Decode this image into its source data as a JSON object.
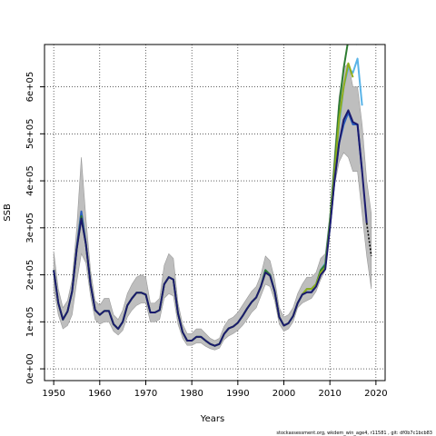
{
  "chart_data": {
    "type": "line",
    "xlabel": "Years",
    "ylabel": "SSB",
    "xlim": [
      1948,
      2022
    ],
    "ylim": [
      -25000,
      690000
    ],
    "x_ticks": [
      1950,
      1960,
      1970,
      1980,
      1990,
      2000,
      2010,
      2020
    ],
    "x_tick_labels": [
      "1950",
      "1960",
      "1970",
      "1980",
      "1990",
      "2000",
      "2010",
      "2020"
    ],
    "y_ticks": [
      0,
      100000,
      200000,
      300000,
      400000,
      500000,
      600000
    ],
    "y_tick_labels": [
      "0e+00",
      "1e+05",
      "2e+05",
      "3e+05",
      "4e+05",
      "5e+05",
      "6e+05"
    ],
    "grid": true,
    "colors": {
      "band": "#bebebe",
      "band_edge": "#9a9a9a",
      "main_navy": "#1a1a6e",
      "green_dark": "#2e7d32",
      "olive": "#8fae1b",
      "light_blue": "#5ab4e8",
      "royal_blue": "#2a5fbf",
      "forecast": "#000000"
    },
    "band": {
      "x": [
        1950,
        1951,
        1952,
        1953,
        1954,
        1955,
        1956,
        1957,
        1958,
        1959,
        1960,
        1961,
        1962,
        1963,
        1964,
        1965,
        1966,
        1967,
        1968,
        1969,
        1970,
        1971,
        1972,
        1973,
        1974,
        1975,
        1976,
        1977,
        1978,
        1979,
        1980,
        1981,
        1982,
        1983,
        1984,
        1985,
        1986,
        1987,
        1988,
        1989,
        1990,
        1991,
        1992,
        1993,
        1994,
        1995,
        1996,
        1997,
        1998,
        1999,
        2000,
        2001,
        2002,
        2003,
        2004,
        2005,
        2006,
        2007,
        2008,
        2009,
        2010,
        2011,
        2012,
        2013,
        2014,
        2015,
        2016,
        2017,
        2018,
        2019
      ],
      "upper": [
        250000,
        170000,
        130000,
        145000,
        190000,
        300000,
        450000,
        320000,
        210000,
        145000,
        135000,
        150000,
        150000,
        115000,
        105000,
        125000,
        160000,
        180000,
        195000,
        200000,
        195000,
        140000,
        140000,
        150000,
        220000,
        245000,
        235000,
        140000,
        95000,
        75000,
        75000,
        85000,
        85000,
        75000,
        65000,
        60000,
        65000,
        90000,
        105000,
        110000,
        120000,
        135000,
        150000,
        165000,
        175000,
        200000,
        240000,
        230000,
        190000,
        130000,
        110000,
        115000,
        130000,
        160000,
        180000,
        195000,
        195000,
        205000,
        235000,
        245000,
        330000,
        460000,
        580000,
        640000,
        650000,
        600000,
        600000,
        520000,
        400000,
        330000
      ],
      "lower": [
        170000,
        115000,
        85000,
        92000,
        115000,
        185000,
        245000,
        225000,
        155000,
        105000,
        95000,
        100000,
        100000,
        80000,
        72000,
        82000,
        110000,
        125000,
        135000,
        140000,
        140000,
        100000,
        100000,
        105000,
        150000,
        160000,
        155000,
        95000,
        65000,
        50000,
        50000,
        55000,
        55000,
        48000,
        43000,
        40000,
        44000,
        62000,
        70000,
        75000,
        82000,
        92000,
        105000,
        120000,
        130000,
        155000,
        180000,
        175000,
        145000,
        95000,
        80000,
        85000,
        100000,
        130000,
        140000,
        145000,
        150000,
        165000,
        190000,
        210000,
        300000,
        390000,
        440000,
        460000,
        450000,
        420000,
        420000,
        330000,
        240000,
        170000
      ]
    },
    "series": [
      {
        "color_key": "light_blue",
        "x": [
          1950,
          1951,
          1952,
          1953,
          1954,
          1955,
          1956,
          1957,
          1958,
          1959,
          1960,
          1961,
          1962,
          1963,
          1964,
          1965,
          1966,
          1967,
          1968,
          1969,
          1970,
          1971,
          1972,
          1973,
          1974,
          1975,
          1976,
          1977,
          1978,
          1979,
          1980,
          1981,
          1982,
          1983,
          1984,
          1985,
          1986,
          1987,
          1988,
          1989,
          1990,
          1991,
          1992,
          1993,
          1994,
          1995,
          1996,
          1997,
          1998,
          1999,
          2000,
          2001,
          2002,
          2003,
          2004,
          2005,
          2006,
          2007,
          2008,
          2009,
          2010,
          2011,
          2012,
          2013,
          2014,
          2015,
          2016,
          2017
        ],
        "values": [
          210000,
          140000,
          105000,
          122000,
          165000,
          255000,
          330000,
          265000,
          180000,
          125000,
          115000,
          123000,
          123000,
          95000,
          85000,
          100000,
          135000,
          150000,
          162000,
          162000,
          158000,
          120000,
          120000,
          125000,
          180000,
          195000,
          190000,
          118000,
          78000,
          60000,
          60000,
          68000,
          68000,
          60000,
          53000,
          49000,
          53000,
          74000,
          86000,
          90000,
          98000,
          112000,
          128000,
          142000,
          152000,
          175000,
          210000,
          200000,
          165000,
          110000,
          92000,
          97000,
          112000,
          140000,
          158000,
          170000,
          170000,
          180000,
          210000,
          225000,
          315000,
          420000,
          520000,
          600000,
          640000,
          630000,
          660000,
          560000
        ]
      },
      {
        "color_key": "royal_blue",
        "x": [
          1950,
          1951,
          1952,
          1953,
          1954,
          1955,
          1956,
          1957,
          1958,
          1959,
          1960,
          1961,
          1962,
          1963,
          1964,
          1965,
          1966,
          1967,
          1968,
          1969,
          1970,
          1971,
          1972,
          1973,
          1974,
          1975,
          1976,
          1977,
          1978,
          1979,
          1980,
          1981,
          1982,
          1983,
          1984,
          1985,
          1986,
          1987,
          1988,
          1989,
          1990,
          1991,
          1992,
          1993,
          1994,
          1995,
          1996,
          1997,
          1998,
          1999,
          2000,
          2001,
          2002,
          2003,
          2004,
          2005,
          2006,
          2007,
          2008,
          2009,
          2010,
          2011,
          2012,
          2013,
          2014,
          2015,
          2016,
          2017
        ],
        "values": [
          210000,
          140000,
          105000,
          122000,
          165000,
          258000,
          335000,
          265000,
          180000,
          125000,
          115000,
          123000,
          123000,
          95000,
          85000,
          100000,
          135000,
          150000,
          162000,
          162000,
          158000,
          120000,
          120000,
          125000,
          180000,
          195000,
          190000,
          118000,
          78000,
          60000,
          60000,
          68000,
          68000,
          60000,
          53000,
          49000,
          53000,
          74000,
          86000,
          90000,
          98000,
          112000,
          128000,
          142000,
          152000,
          175000,
          210000,
          200000,
          165000,
          110000,
          92000,
          97000,
          112000,
          140000,
          158000,
          163000,
          163000,
          178000,
          205000,
          220000,
          300000,
          400000,
          480000,
          520000,
          545000,
          520000,
          520000,
          420000
        ]
      },
      {
        "color_key": "green_dark",
        "x": [
          1950,
          1951,
          1952,
          1953,
          1954,
          1955,
          1956,
          1957,
          1958,
          1959,
          1960,
          1961,
          1962,
          1963,
          1964,
          1965,
          1966,
          1967,
          1968,
          1969,
          1970,
          1971,
          1972,
          1973,
          1974,
          1975,
          1976,
          1977,
          1978,
          1979,
          1980,
          1981,
          1982,
          1983,
          1984,
          1985,
          1986,
          1987,
          1988,
          1989,
          1990,
          1991,
          1992,
          1993,
          1994,
          1995,
          1996,
          1997,
          1998,
          1999,
          2000,
          2001,
          2002,
          2003,
          2004,
          2005,
          2006,
          2007,
          2008,
          2009,
          2010,
          2011,
          2012,
          2013,
          2014,
          2015,
          2016
        ],
        "values": [
          210000,
          140000,
          105000,
          122000,
          165000,
          255000,
          325000,
          265000,
          180000,
          125000,
          115000,
          123000,
          123000,
          95000,
          85000,
          100000,
          135000,
          150000,
          162000,
          162000,
          158000,
          120000,
          120000,
          125000,
          180000,
          195000,
          190000,
          118000,
          78000,
          60000,
          60000,
          68000,
          68000,
          60000,
          53000,
          49000,
          53000,
          74000,
          86000,
          90000,
          98000,
          112000,
          128000,
          142000,
          152000,
          175000,
          210000,
          200000,
          165000,
          110000,
          92000,
          97000,
          112000,
          140000,
          158000,
          170000,
          170000,
          180000,
          210000,
          222000,
          315000,
          430000,
          560000,
          640000,
          700000,
          700000,
          690000
        ]
      },
      {
        "color_key": "olive",
        "x": [
          1950,
          1951,
          1952,
          1953,
          1954,
          1955,
          1956,
          1957,
          1958,
          1959,
          1960,
          1961,
          1962,
          1963,
          1964,
          1965,
          1966,
          1967,
          1968,
          1969,
          1970,
          1971,
          1972,
          1973,
          1974,
          1975,
          1976,
          1977,
          1978,
          1979,
          1980,
          1981,
          1982,
          1983,
          1984,
          1985,
          1986,
          1987,
          1988,
          1989,
          1990,
          1991,
          1992,
          1993,
          1994,
          1995,
          1996,
          1997,
          1998,
          1999,
          2000,
          2001,
          2002,
          2003,
          2004,
          2005,
          2006,
          2007,
          2008,
          2009,
          2010,
          2011,
          2012,
          2013,
          2014,
          2015
        ],
        "values": [
          210000,
          140000,
          105000,
          122000,
          165000,
          255000,
          320000,
          265000,
          180000,
          125000,
          115000,
          123000,
          123000,
          95000,
          85000,
          100000,
          135000,
          150000,
          162000,
          162000,
          158000,
          120000,
          120000,
          125000,
          180000,
          195000,
          190000,
          118000,
          78000,
          60000,
          60000,
          68000,
          68000,
          60000,
          53000,
          49000,
          53000,
          74000,
          86000,
          90000,
          98000,
          112000,
          128000,
          142000,
          152000,
          175000,
          205000,
          198000,
          165000,
          110000,
          92000,
          97000,
          112000,
          140000,
          158000,
          170000,
          170000,
          180000,
          205000,
          215000,
          305000,
          415000,
          530000,
          600000,
          650000,
          620000
        ]
      },
      {
        "color_key": "main_navy",
        "x": [
          1950,
          1951,
          1952,
          1953,
          1954,
          1955,
          1956,
          1957,
          1958,
          1959,
          1960,
          1961,
          1962,
          1963,
          1964,
          1965,
          1966,
          1967,
          1968,
          1969,
          1970,
          1971,
          1972,
          1973,
          1974,
          1975,
          1976,
          1977,
          1978,
          1979,
          1980,
          1981,
          1982,
          1983,
          1984,
          1985,
          1986,
          1987,
          1988,
          1989,
          1990,
          1991,
          1992,
          1993,
          1994,
          1995,
          1996,
          1997,
          1998,
          1999,
          2000,
          2001,
          2002,
          2003,
          2004,
          2005,
          2006,
          2007,
          2008,
          2009,
          2010,
          2011,
          2012,
          2013,
          2014,
          2015,
          2016,
          2017,
          2018
        ],
        "values": [
          210000,
          140000,
          105000,
          122000,
          165000,
          255000,
          320000,
          265000,
          180000,
          125000,
          115000,
          123000,
          123000,
          95000,
          85000,
          100000,
          135000,
          150000,
          162000,
          162000,
          158000,
          120000,
          120000,
          125000,
          180000,
          195000,
          190000,
          118000,
          78000,
          60000,
          60000,
          68000,
          68000,
          60000,
          53000,
          49000,
          53000,
          74000,
          86000,
          90000,
          98000,
          112000,
          128000,
          142000,
          152000,
          175000,
          205000,
          198000,
          165000,
          110000,
          92000,
          97000,
          112000,
          140000,
          158000,
          163000,
          163000,
          175000,
          200000,
          212000,
          300000,
          400000,
          480000,
          530000,
          550000,
          525000,
          520000,
          420000,
          310000
        ]
      },
      {
        "color_key": "forecast",
        "dashed": true,
        "x": [
          2018,
          2019
        ],
        "values": [
          310000,
          240000
        ]
      }
    ]
  },
  "footer": {
    "text": "stockassessment.org,  wkdem_win_age4,  r11581 ,  git:  df0b7c1bcb83"
  }
}
